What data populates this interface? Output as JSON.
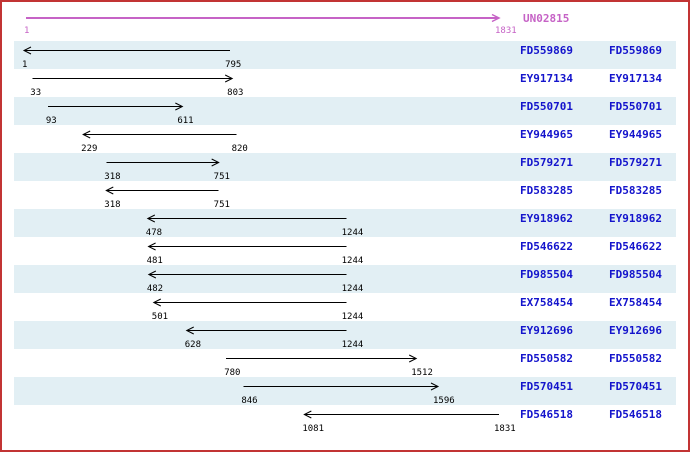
{
  "colors": {
    "border": "#C23434",
    "background": "#FFFFFF",
    "row_band": "#E2EFF4",
    "reference_magenta": "#C663C6",
    "accession_blue": "#1414CC",
    "alignment_arrow": "#000000"
  },
  "chart_data": {
    "type": "bar",
    "subtype": "horizontal-interval-alignment",
    "title": "UN02815",
    "xlabel": "",
    "ylabel": "",
    "x_range": [
      1,
      1831
    ],
    "grid": false,
    "legend": "none",
    "reference": {
      "name": "UN02815",
      "start": 1,
      "end": 1831,
      "start_label": "1",
      "end_label": "1831",
      "direction": "right"
    },
    "series": [
      {
        "name": "FD559869",
        "start": 1,
        "end": 795,
        "direction": "left",
        "shaded_row": true
      },
      {
        "name": "EY917134",
        "start": 33,
        "end": 803,
        "direction": "right",
        "shaded_row": false
      },
      {
        "name": "FD550701",
        "start": 93,
        "end": 611,
        "direction": "right",
        "shaded_row": true
      },
      {
        "name": "EY944965",
        "start": 229,
        "end": 820,
        "direction": "left",
        "shaded_row": false
      },
      {
        "name": "FD579271",
        "start": 318,
        "end": 751,
        "direction": "right",
        "shaded_row": true
      },
      {
        "name": "FD583285",
        "start": 318,
        "end": 751,
        "direction": "left",
        "shaded_row": false
      },
      {
        "name": "EY918962",
        "start": 478,
        "end": 1244,
        "direction": "left",
        "shaded_row": true
      },
      {
        "name": "FD546622",
        "start": 481,
        "end": 1244,
        "direction": "left",
        "shaded_row": false
      },
      {
        "name": "FD985504",
        "start": 482,
        "end": 1244,
        "direction": "left",
        "shaded_row": true
      },
      {
        "name": "EX758454",
        "start": 501,
        "end": 1244,
        "direction": "left",
        "shaded_row": false
      },
      {
        "name": "EY912696",
        "start": 628,
        "end": 1244,
        "direction": "left",
        "shaded_row": true
      },
      {
        "name": "FD550582",
        "start": 780,
        "end": 1512,
        "direction": "right",
        "shaded_row": false
      },
      {
        "name": "FD570451",
        "start": 846,
        "end": 1596,
        "direction": "right",
        "shaded_row": true
      },
      {
        "name": "FD546518",
        "start": 1081,
        "end": 1831,
        "direction": "left",
        "shaded_row": false
      }
    ]
  }
}
